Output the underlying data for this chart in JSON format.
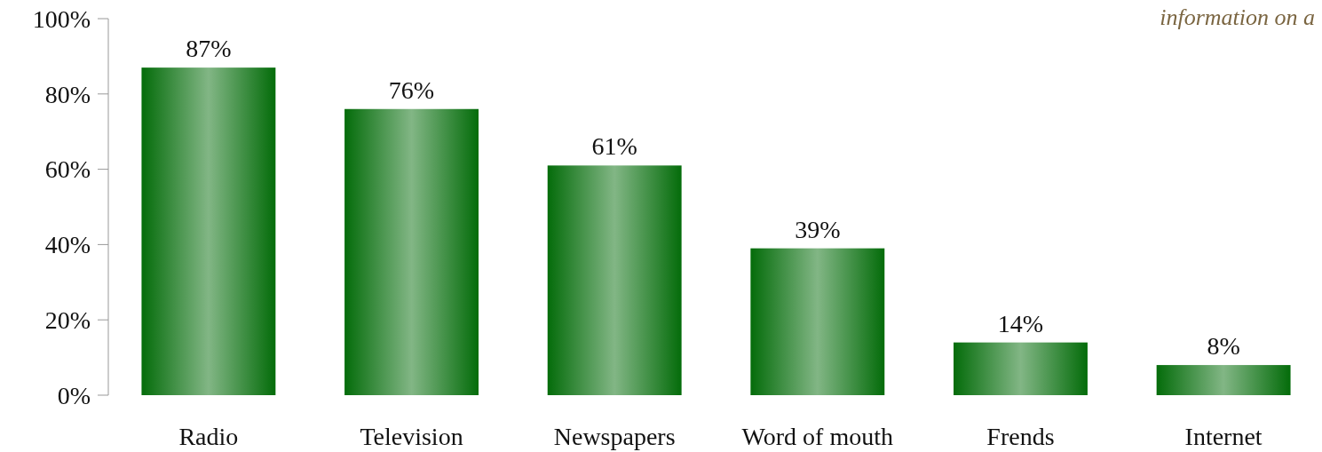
{
  "chart_data": {
    "type": "bar",
    "categories": [
      "Radio",
      "Television",
      "Newspapers",
      "Word of mouth",
      "Frends",
      "Internet"
    ],
    "values": [
      87,
      76,
      61,
      39,
      14,
      8
    ],
    "value_labels": [
      "87%",
      "76%",
      "61%",
      "39%",
      "14%",
      "8%"
    ],
    "color": "#046c0a",
    "ylim": [
      0,
      100
    ],
    "yticks": [
      {
        "value": 0,
        "label": "0%"
      },
      {
        "value": 20,
        "label": "20%"
      },
      {
        "value": 40,
        "label": "40%"
      },
      {
        "value": 60,
        "label": "60%"
      },
      {
        "value": 80,
        "label": "80%"
      },
      {
        "value": 100,
        "label": "100%"
      }
    ],
    "annotations": [
      "information on a"
    ],
    "grid": false
  }
}
